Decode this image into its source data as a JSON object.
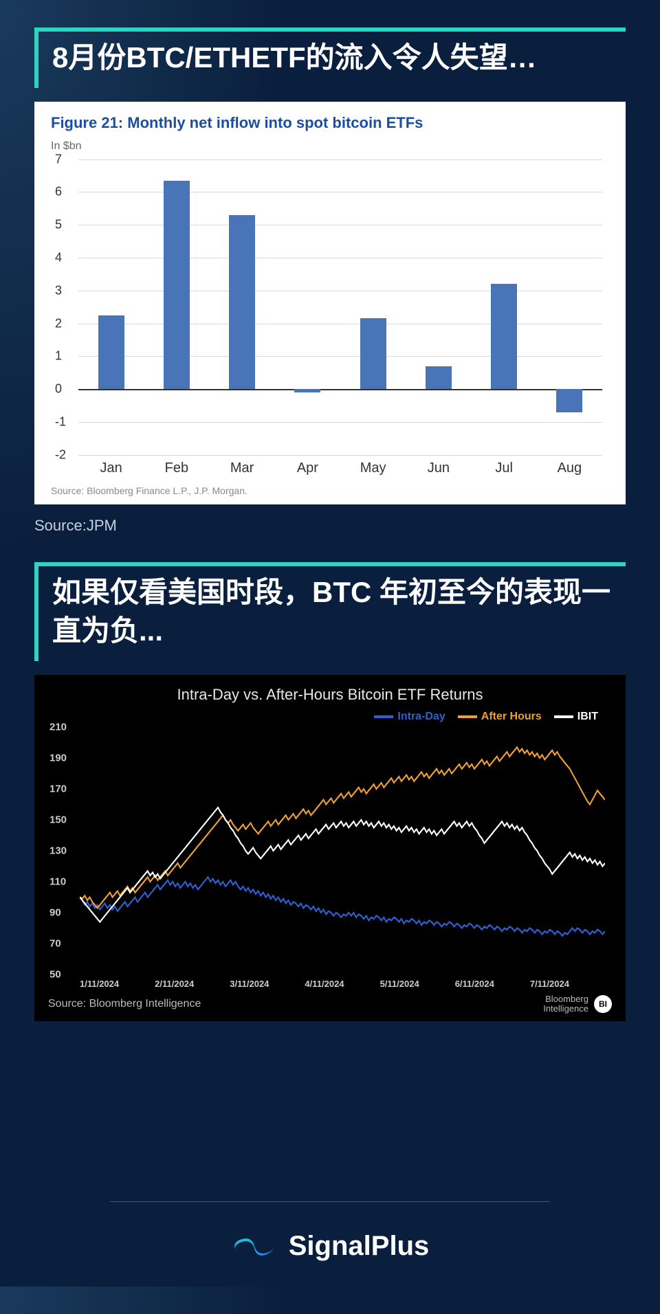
{
  "page": {
    "background_base": "#0a1f3d",
    "accent": "#2dd4bf"
  },
  "section1": {
    "title": "8月份BTC/ETHETF的流入令人失望…",
    "ext_source": "Source:JPM",
    "chart": {
      "type": "bar",
      "title": "Figure 21: Monthly net inflow into spot bitcoin ETFs",
      "unit": "In $bn",
      "source": "Source: Bloomberg Finance L.P., J.P. Morgan.",
      "categories": [
        "Jan",
        "Feb",
        "Mar",
        "Apr",
        "May",
        "Jun",
        "Jul",
        "Aug"
      ],
      "values": [
        2.25,
        6.35,
        5.3,
        -0.1,
        2.15,
        0.7,
        3.2,
        -0.7
      ],
      "bar_color": "#4a74b8",
      "title_color": "#1a4fa0",
      "grid_color": "#d8d8d8",
      "axis_color": "#333333",
      "background_color": "#ffffff",
      "label_fontsize": 20,
      "title_fontsize": 22,
      "ylim": [
        -2,
        7
      ],
      "ytick_step": 1,
      "bar_width": 0.4
    }
  },
  "section2": {
    "title": "如果仅看美国时段，BTC 年初至今的表现一直为负...",
    "chart": {
      "type": "line",
      "title": "Intra-Day vs. After-Hours Bitcoin ETF Returns",
      "background_color": "#000000",
      "text_color": "#e8e8e8",
      "source_left": "Source: Bloomberg Intelligence",
      "source_right": "Bloomberg\nIntelligence",
      "badge": "BI",
      "ylim": [
        50,
        210
      ],
      "ytick_step": 20,
      "yticks": [
        50,
        70,
        90,
        110,
        130,
        150,
        170,
        190,
        210
      ],
      "x_labels": [
        "1/11/2024",
        "2/11/2024",
        "3/11/2024",
        "4/11/2024",
        "5/11/2024",
        "6/11/2024",
        "7/11/2024"
      ],
      "x_count": 210,
      "series": [
        {
          "name": "Intra-Day",
          "color": "#2f5fd0",
          "line_width": 2.5,
          "points": [
            100,
            98,
            95,
            97,
            94,
            96,
            93,
            95,
            92,
            94,
            96,
            93,
            95,
            92,
            94,
            91,
            93,
            95,
            97,
            94,
            96,
            98,
            100,
            97,
            99,
            101,
            103,
            100,
            102,
            104,
            106,
            108,
            105,
            107,
            109,
            111,
            108,
            110,
            107,
            109,
            106,
            108,
            110,
            107,
            109,
            106,
            108,
            105,
            107,
            109,
            111,
            113,
            110,
            112,
            109,
            111,
            108,
            110,
            107,
            109,
            111,
            108,
            110,
            107,
            105,
            107,
            104,
            106,
            103,
            105,
            102,
            104,
            101,
            103,
            100,
            102,
            99,
            101,
            98,
            100,
            97,
            99,
            96,
            98,
            95,
            97,
            96,
            94,
            96,
            93,
            95,
            94,
            92,
            94,
            91,
            93,
            90,
            92,
            89,
            91,
            90,
            88,
            90,
            89,
            87,
            89,
            88,
            90,
            88,
            90,
            87,
            89,
            88,
            86,
            88,
            85,
            87,
            86,
            88,
            87,
            85,
            87,
            84,
            86,
            85,
            87,
            86,
            84,
            86,
            83,
            85,
            84,
            86,
            85,
            83,
            85,
            82,
            84,
            83,
            85,
            84,
            82,
            84,
            83,
            81,
            83,
            82,
            84,
            83,
            81,
            83,
            82,
            80,
            82,
            81,
            83,
            82,
            80,
            82,
            81,
            79,
            81,
            80,
            82,
            81,
            79,
            81,
            80,
            78,
            80,
            79,
            81,
            80,
            78,
            80,
            79,
            77,
            79,
            78,
            80,
            79,
            77,
            79,
            78,
            76,
            78,
            77,
            79,
            78,
            76,
            78,
            77,
            75,
            77,
            76,
            78,
            80,
            78,
            80,
            79,
            77,
            79,
            78,
            76,
            78,
            77,
            79,
            78,
            76,
            78
          ]
        },
        {
          "name": "After Hours",
          "color": "#f0a030",
          "line_width": 2.5,
          "points": [
            100,
            99,
            101,
            98,
            100,
            97,
            95,
            93,
            95,
            97,
            99,
            101,
            103,
            100,
            102,
            104,
            101,
            103,
            105,
            107,
            104,
            106,
            103,
            105,
            107,
            109,
            111,
            113,
            110,
            112,
            114,
            111,
            113,
            115,
            117,
            114,
            116,
            118,
            120,
            122,
            119,
            121,
            123,
            125,
            127,
            129,
            131,
            133,
            135,
            137,
            139,
            141,
            143,
            145,
            147,
            149,
            151,
            153,
            150,
            148,
            150,
            147,
            145,
            143,
            145,
            147,
            144,
            146,
            148,
            145,
            143,
            141,
            143,
            145,
            147,
            149,
            146,
            148,
            150,
            147,
            149,
            151,
            153,
            150,
            152,
            154,
            151,
            153,
            155,
            157,
            154,
            156,
            153,
            155,
            157,
            159,
            161,
            163,
            160,
            162,
            164,
            161,
            163,
            165,
            167,
            164,
            166,
            168,
            165,
            167,
            169,
            171,
            168,
            170,
            167,
            169,
            171,
            173,
            170,
            172,
            174,
            171,
            173,
            175,
            177,
            174,
            176,
            178,
            175,
            177,
            179,
            176,
            178,
            175,
            177,
            179,
            181,
            178,
            180,
            177,
            179,
            181,
            183,
            180,
            182,
            179,
            181,
            183,
            180,
            182,
            184,
            186,
            183,
            185,
            187,
            184,
            186,
            183,
            185,
            187,
            189,
            186,
            188,
            185,
            187,
            189,
            191,
            188,
            190,
            192,
            194,
            191,
            193,
            195,
            197,
            194,
            196,
            193,
            195,
            192,
            194,
            191,
            193,
            190,
            192,
            189,
            191,
            193,
            195,
            192,
            194,
            191,
            189,
            187,
            185,
            183,
            180,
            177,
            174,
            171,
            168,
            165,
            162,
            160,
            163,
            166,
            169,
            167,
            165,
            163
          ]
        },
        {
          "name": "IBIT",
          "color": "#ffffff",
          "line_width": 2.5,
          "points": [
            100,
            98,
            96,
            94,
            92,
            90,
            88,
            86,
            84,
            86,
            88,
            90,
            92,
            94,
            96,
            98,
            100,
            102,
            104,
            106,
            103,
            105,
            107,
            109,
            111,
            113,
            115,
            117,
            114,
            116,
            113,
            115,
            112,
            114,
            116,
            118,
            120,
            122,
            124,
            126,
            128,
            130,
            132,
            134,
            136,
            138,
            140,
            142,
            144,
            146,
            148,
            150,
            152,
            154,
            156,
            158,
            155,
            153,
            150,
            148,
            145,
            143,
            140,
            138,
            135,
            133,
            130,
            128,
            130,
            132,
            129,
            127,
            125,
            127,
            129,
            131,
            133,
            130,
            132,
            134,
            131,
            133,
            135,
            137,
            134,
            136,
            138,
            140,
            137,
            139,
            141,
            138,
            140,
            142,
            144,
            141,
            143,
            145,
            147,
            144,
            146,
            148,
            145,
            147,
            149,
            146,
            148,
            145,
            147,
            149,
            146,
            148,
            150,
            147,
            149,
            146,
            148,
            145,
            147,
            149,
            146,
            148,
            145,
            147,
            144,
            146,
            143,
            145,
            142,
            144,
            146,
            143,
            145,
            142,
            144,
            141,
            143,
            145,
            142,
            144,
            141,
            143,
            140,
            142,
            144,
            141,
            143,
            145,
            147,
            149,
            146,
            148,
            145,
            147,
            149,
            146,
            148,
            145,
            143,
            140,
            138,
            135,
            137,
            139,
            141,
            143,
            145,
            147,
            149,
            146,
            148,
            145,
            147,
            144,
            146,
            143,
            145,
            142,
            140,
            137,
            135,
            132,
            130,
            127,
            125,
            122,
            120,
            118,
            115,
            117,
            119,
            121,
            123,
            125,
            127,
            129,
            126,
            128,
            125,
            127,
            124,
            126,
            123,
            125,
            122,
            124,
            121,
            123,
            120,
            122
          ]
        }
      ]
    }
  },
  "footer": {
    "brand": "SignalPlus",
    "logo_color_1": "#1fc7d4",
    "logo_color_2": "#2b7fff"
  }
}
